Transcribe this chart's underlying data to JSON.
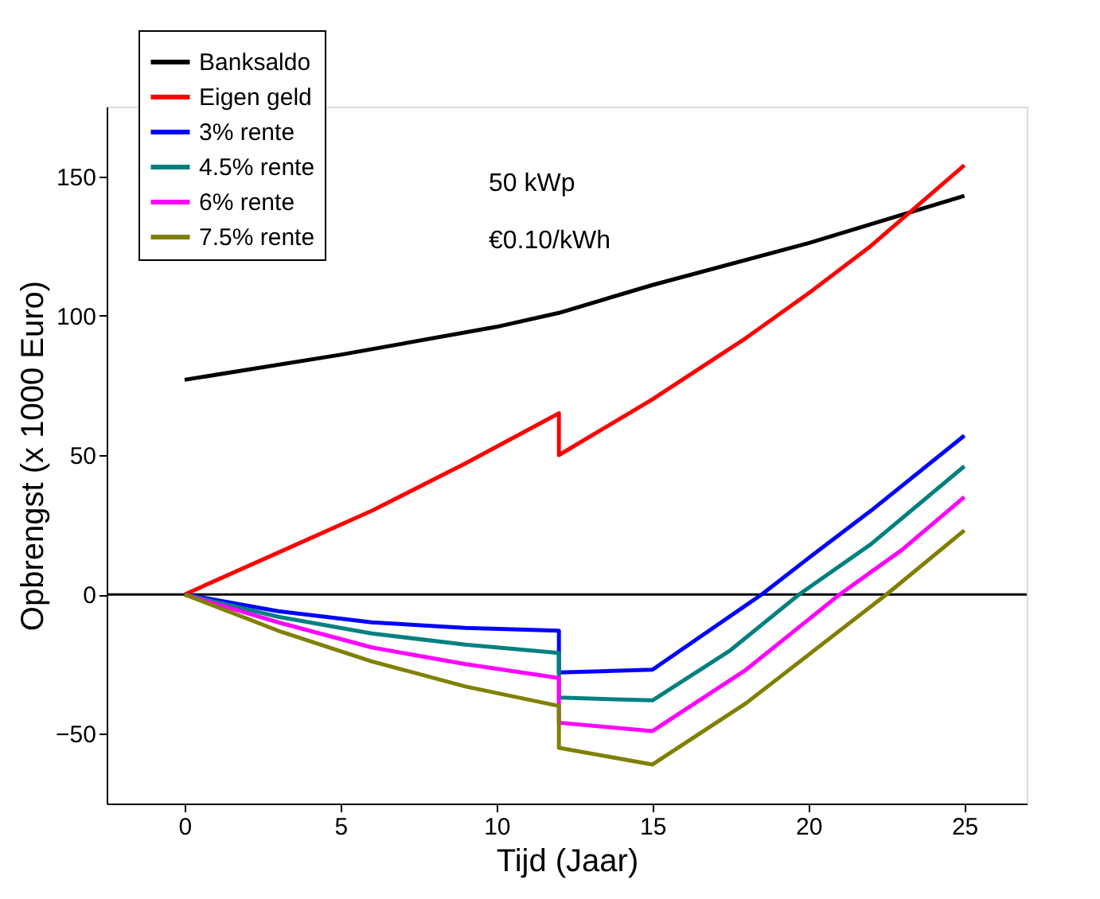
{
  "chart_data": {
    "type": "line",
    "xlabel": "Tijd (Jaar)",
    "ylabel": "Opbrengst (x 1000 Euro)",
    "xlim": [
      -2.5,
      27
    ],
    "xticks": [
      0,
      5,
      10,
      15,
      20,
      25
    ],
    "ylim": [
      -75,
      175
    ],
    "yticks": [
      -50,
      0,
      50,
      100,
      150
    ],
    "grid": false,
    "legend": "top left",
    "marker": "none",
    "line_style": "solid",
    "annotations": [
      "50 kWp",
      "€0.10/kWh"
    ],
    "ref_lines": [
      {
        "axis": "y",
        "value": 0,
        "label": null,
        "color": "#000000"
      }
    ],
    "series": [
      {
        "name": "Banksaldo",
        "color": "#000000",
        "x": [
          0,
          5,
          10,
          12,
          15,
          20,
          25
        ],
        "values": [
          77,
          86,
          96,
          101,
          111,
          126,
          143
        ]
      },
      {
        "name": "Eigen geld",
        "color": "#ff0000",
        "x": [
          0,
          3,
          6,
          9,
          12,
          12,
          15,
          18,
          20,
          22,
          25
        ],
        "values": [
          0,
          15,
          30,
          47,
          65,
          50,
          70,
          92,
          108,
          125,
          154
        ]
      },
      {
        "name": "3% rente",
        "color": "#0000ff",
        "x": [
          0,
          3,
          6,
          9,
          12,
          12,
          15,
          18.5,
          20,
          22,
          25
        ],
        "values": [
          0,
          -6,
          -10,
          -12,
          -13,
          -28,
          -27,
          0,
          13,
          30,
          57
        ]
      },
      {
        "name": "4.5% rente",
        "color": "#008080",
        "x": [
          0,
          3,
          6,
          9,
          12,
          12,
          15,
          17.5,
          19.7,
          22,
          25
        ],
        "values": [
          0,
          -8,
          -14,
          -18,
          -21,
          -37,
          -38,
          -20,
          0,
          18,
          46
        ]
      },
      {
        "name": "6% rente",
        "color": "#ff00ff",
        "x": [
          0,
          3,
          6,
          9,
          12,
          12,
          15,
          18,
          21,
          23,
          25
        ],
        "values": [
          0,
          -10,
          -19,
          -25,
          -30,
          -46,
          -49,
          -27,
          0,
          16,
          35
        ]
      },
      {
        "name": "7.5% rente",
        "color": "#808000",
        "x": [
          0,
          3,
          6,
          9,
          12,
          12,
          15,
          18,
          22.5,
          25
        ],
        "values": [
          0,
          -13,
          -24,
          -33,
          -40,
          -55,
          -61,
          -39,
          0,
          23
        ]
      }
    ]
  }
}
